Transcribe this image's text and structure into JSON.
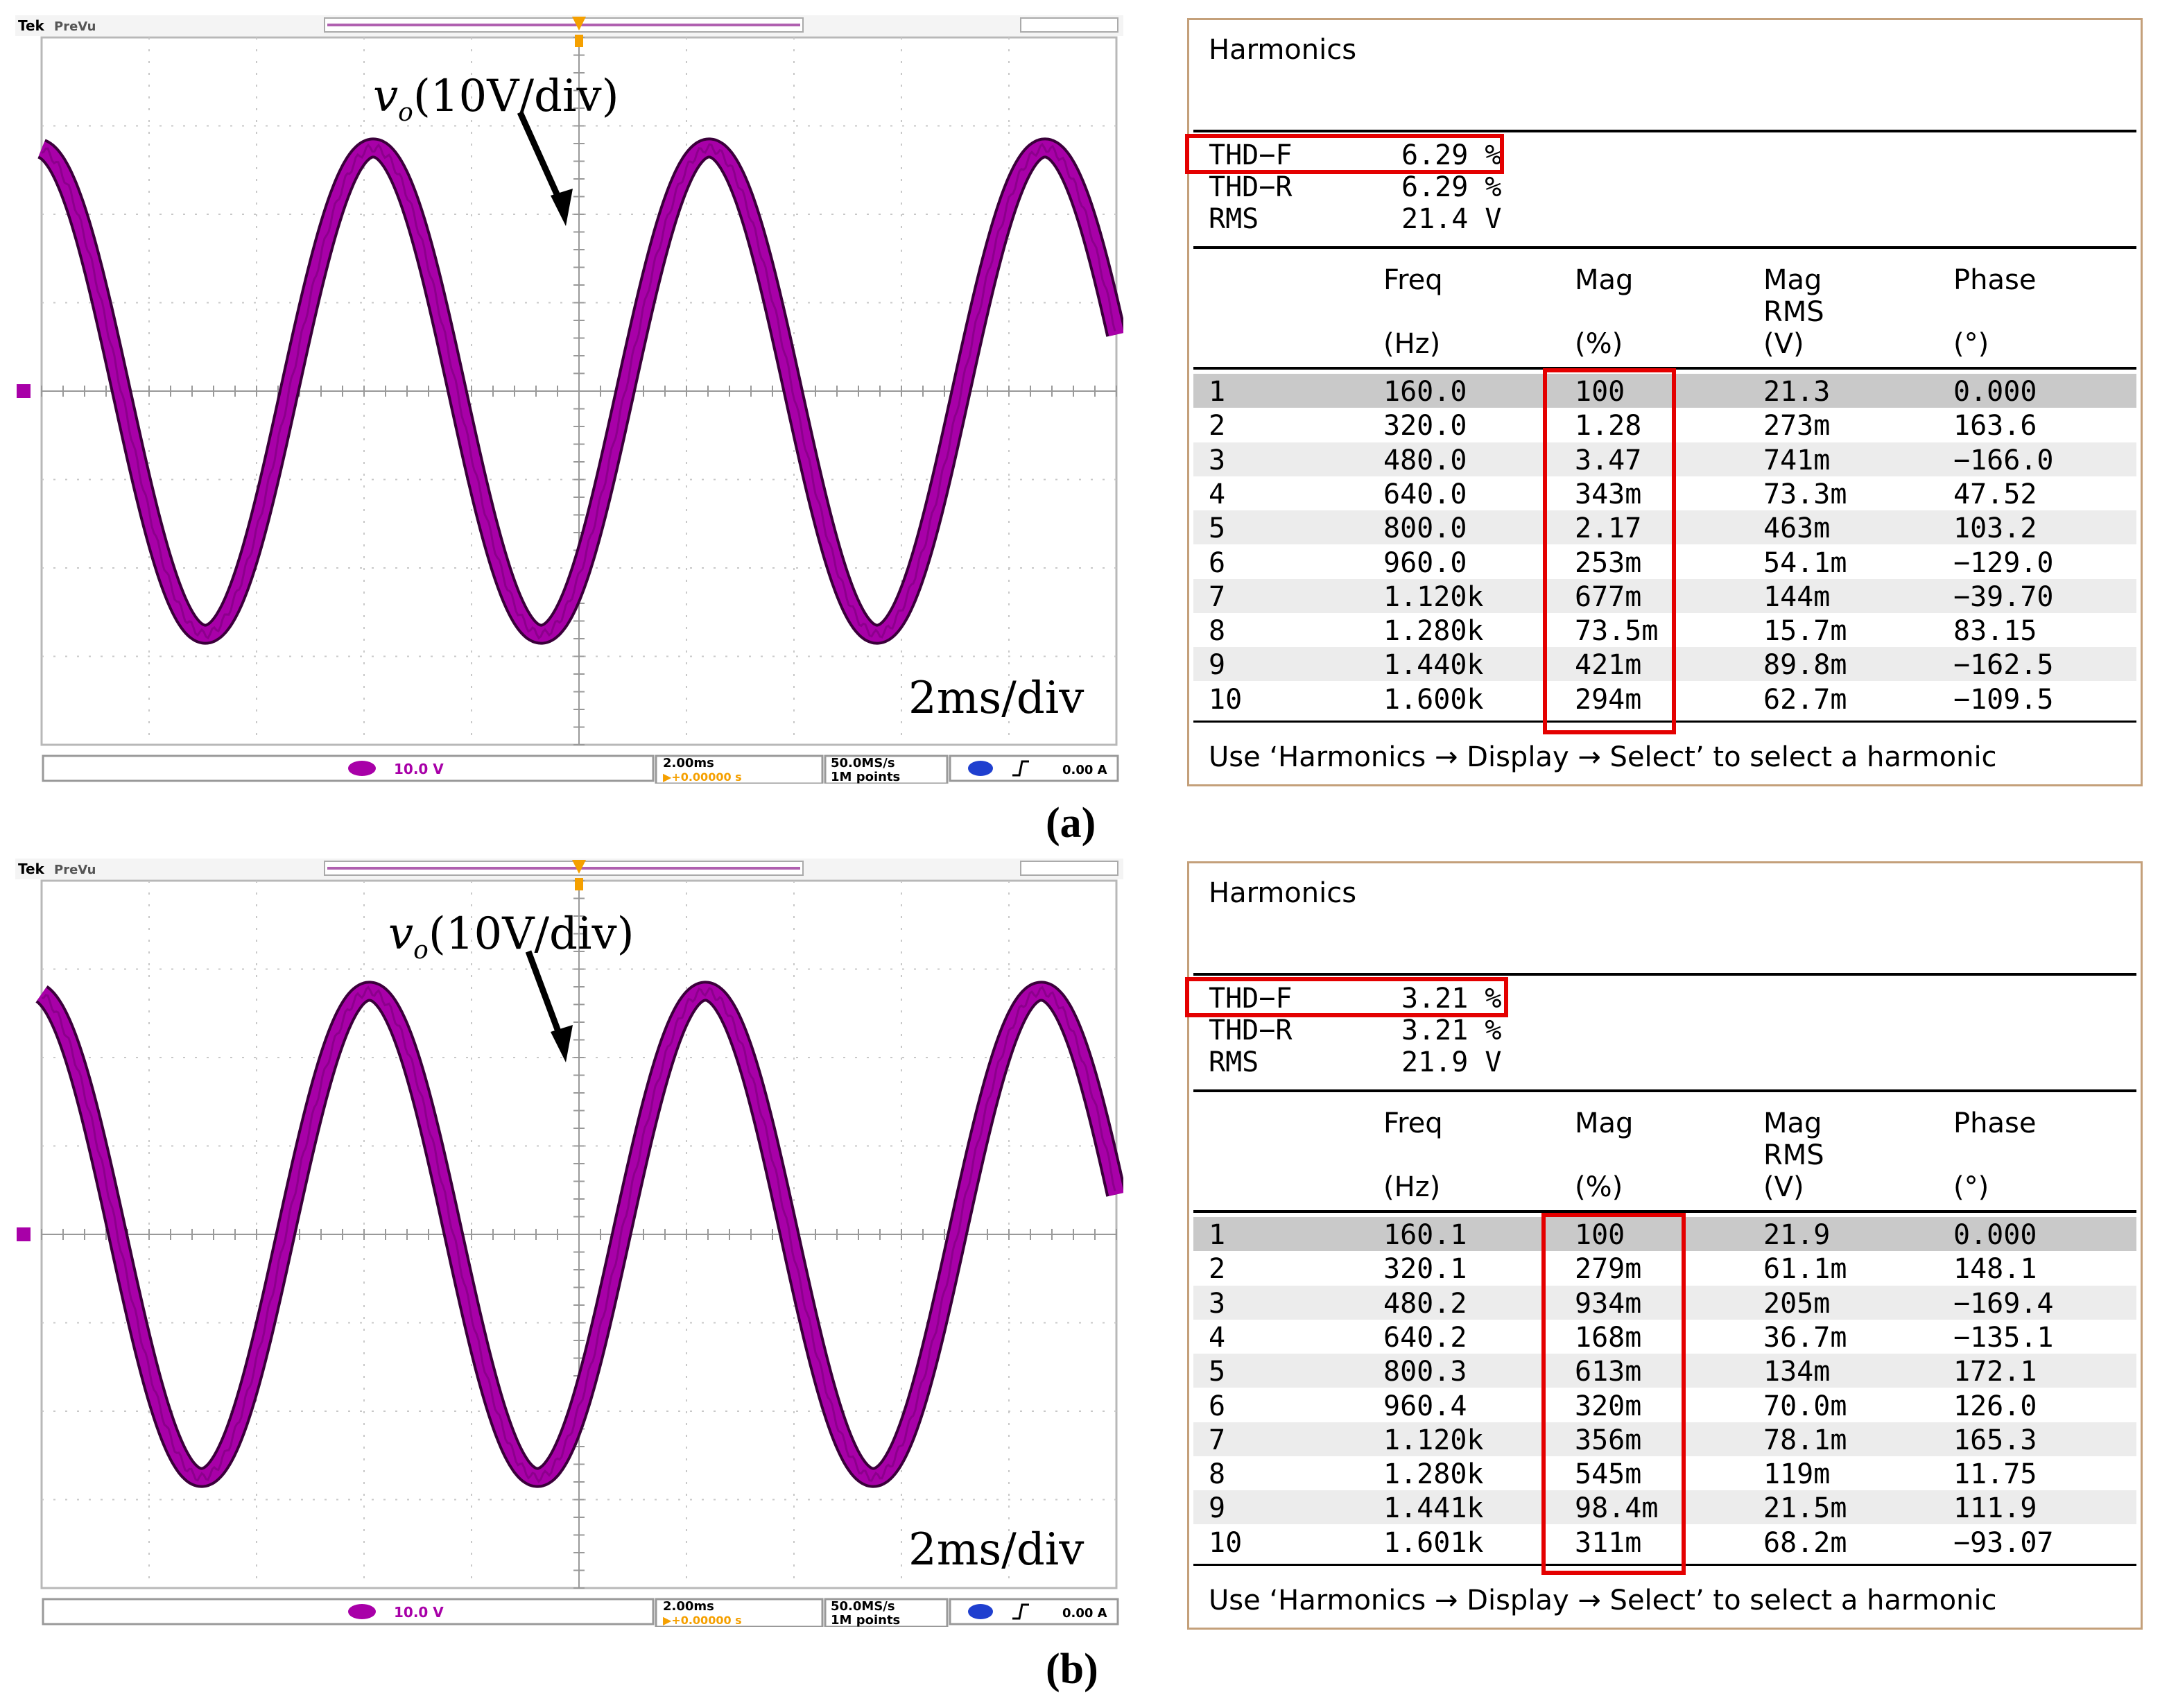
{
  "panels": [
    {
      "label": "(a)",
      "scope": {
        "brand": "Tek",
        "mode": "PreVu",
        "ch1_scale": "10.0 V",
        "timebase": "2.00ms",
        "delay": "▶+0.00000 s",
        "sample_rate": "50.0MS/s",
        "record": "1M points",
        "trigger_level": "0.00 A",
        "ch_marker": "1",
        "annotation_var": "v",
        "annotation_sub": "o",
        "annotation_scale": "(10V/div)",
        "time_scale": "2ms/div"
      },
      "harmonics": {
        "title": "Harmonics",
        "thd_f_label": "THD−F",
        "thd_f": "6.29 %",
        "thd_r_label": "THD−R",
        "thd_r": "6.29 %",
        "rms_label": "RMS",
        "rms": "21.4 V",
        "headers": {
          "freq": "Freq",
          "freq_unit": "(Hz)",
          "mag": "Mag",
          "mag_unit": "(%)",
          "magrms": "Mag",
          "magrms2": "RMS",
          "magrms_unit": "(V)",
          "phase": "Phase",
          "phase_unit": "(°)"
        },
        "rows": [
          {
            "n": "1",
            "freq": "160.0",
            "mag": "100",
            "rms": "21.3",
            "phase": "0.000"
          },
          {
            "n": "2",
            "freq": "320.0",
            "mag": "1.28",
            "rms": "273m",
            "phase": "163.6"
          },
          {
            "n": "3",
            "freq": "480.0",
            "mag": "3.47",
            "rms": "741m",
            "phase": "−166.0"
          },
          {
            "n": "4",
            "freq": "640.0",
            "mag": "343m",
            "rms": "73.3m",
            "phase": "47.52"
          },
          {
            "n": "5",
            "freq": "800.0",
            "mag": "2.17",
            "rms": "463m",
            "phase": "103.2"
          },
          {
            "n": "6",
            "freq": "960.0",
            "mag": "253m",
            "rms": "54.1m",
            "phase": "−129.0"
          },
          {
            "n": "7",
            "freq": "1.120k",
            "mag": "677m",
            "rms": "144m",
            "phase": "−39.70"
          },
          {
            "n": "8",
            "freq": "1.280k",
            "mag": "73.5m",
            "rms": "15.7m",
            "phase": "83.15"
          },
          {
            "n": "9",
            "freq": "1.440k",
            "mag": "421m",
            "rms": "89.8m",
            "phase": "−162.5"
          },
          {
            "n": "10",
            "freq": "1.600k",
            "mag": "294m",
            "rms": "62.7m",
            "phase": "−109.5"
          }
        ],
        "note": "Use ‘Harmonics → Display → Select’ to select a harmonic"
      }
    },
    {
      "label": "(b)",
      "scope": {
        "brand": "Tek",
        "mode": "PreVu",
        "ch1_scale": "10.0 V",
        "timebase": "2.00ms",
        "delay": "▶+0.00000 s",
        "sample_rate": "50.0MS/s",
        "record": "1M points",
        "trigger_level": "0.00 A",
        "ch_marker": "1",
        "annotation_var": "v",
        "annotation_sub": "o",
        "annotation_scale": "(10V/div)",
        "time_scale": "2ms/div"
      },
      "harmonics": {
        "title": "Harmonics",
        "thd_f_label": "THD−F",
        "thd_f": "3.21 %",
        "thd_r_label": "THD−R",
        "thd_r": "3.21 %",
        "rms_label": "RMS",
        "rms": "21.9 V",
        "headers": {
          "freq": "Freq",
          "freq_unit": "(Hz)",
          "mag": "Mag",
          "mag_unit": "(%)",
          "magrms": "Mag",
          "magrms2": "RMS",
          "magrms_unit": "(V)",
          "phase": "Phase",
          "phase_unit": "(°)"
        },
        "rows": [
          {
            "n": "1",
            "freq": "160.1",
            "mag": "100",
            "rms": "21.9",
            "phase": "0.000"
          },
          {
            "n": "2",
            "freq": "320.1",
            "mag": "279m",
            "rms": "61.1m",
            "phase": "148.1"
          },
          {
            "n": "3",
            "freq": "480.2",
            "mag": "934m",
            "rms": "205m",
            "phase": "−169.4"
          },
          {
            "n": "4",
            "freq": "640.2",
            "mag": "168m",
            "rms": "36.7m",
            "phase": "−135.1"
          },
          {
            "n": "5",
            "freq": "800.3",
            "mag": "613m",
            "rms": "134m",
            "phase": "172.1"
          },
          {
            "n": "6",
            "freq": "960.4",
            "mag": "320m",
            "rms": "70.0m",
            "phase": "126.0"
          },
          {
            "n": "7",
            "freq": "1.120k",
            "mag": "356m",
            "rms": "78.1m",
            "phase": "165.3"
          },
          {
            "n": "8",
            "freq": "1.280k",
            "mag": "545m",
            "rms": "119m",
            "phase": "11.75"
          },
          {
            "n": "9",
            "freq": "1.441k",
            "mag": "98.4m",
            "rms": "21.5m",
            "phase": "111.9"
          },
          {
            "n": "10",
            "freq": "1.601k",
            "mag": "311m",
            "rms": "68.2m",
            "phase": "−93.07"
          }
        ],
        "note": "Use ‘Harmonics → Display → Select’ to select a harmonic"
      }
    }
  ],
  "colors": {
    "trace": "#a800a8",
    "highlight": "#e40000",
    "border": "#c4a07a"
  }
}
